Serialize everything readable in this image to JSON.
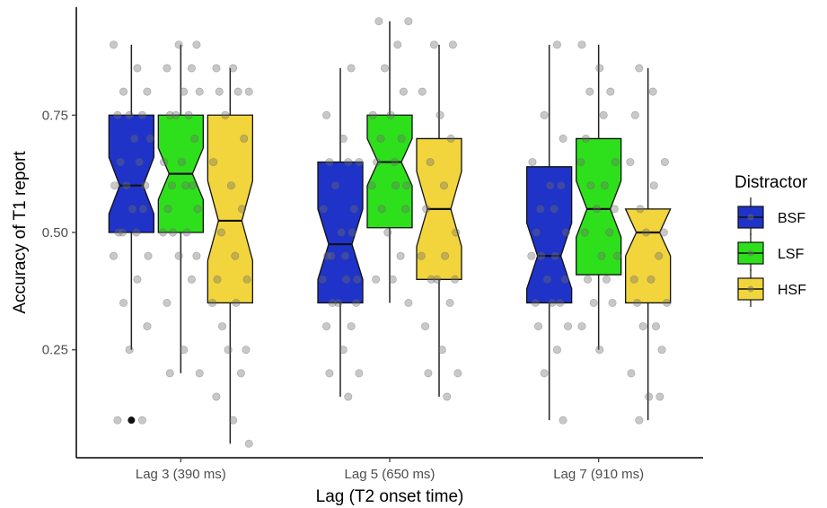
{
  "chart_data": {
    "type": "boxplot",
    "title": "",
    "xlabel": "Lag (T2 onset time)",
    "ylabel": "Accuracy of T1 report",
    "categories": [
      "Lag 3 (390 ms)",
      "Lag 5 (650 ms)",
      "Lag 7 (910 ms)"
    ],
    "yticks": [
      0.25,
      0.5,
      0.75
    ],
    "ytick_labels": [
      "0.25",
      "0.50",
      "0.75"
    ],
    "ylim": [
      0.02,
      0.98
    ],
    "legend": {
      "title": "Distractor",
      "position": "right"
    },
    "series": [
      {
        "name": "BSF",
        "color": "#1f33c8",
        "boxes": [
          {
            "min": 0.25,
            "q1": 0.5,
            "median": 0.6,
            "q3": 0.75,
            "max": 0.9,
            "notch_low": 0.54,
            "notch_high": 0.66,
            "outliers": [
              0.1
            ]
          },
          {
            "min": 0.15,
            "q1": 0.35,
            "median": 0.475,
            "q3": 0.65,
            "max": 0.85,
            "notch_low": 0.4,
            "notch_high": 0.55,
            "outliers": []
          },
          {
            "min": 0.1,
            "q1": 0.35,
            "median": 0.45,
            "q3": 0.64,
            "max": 0.9,
            "notch_low": 0.38,
            "notch_high": 0.52,
            "outliers": []
          }
        ],
        "points": [
          [
            0.9,
            0.85,
            0.8,
            0.8,
            0.75,
            0.75,
            0.75,
            0.7,
            0.7,
            0.65,
            0.65,
            0.6,
            0.6,
            0.6,
            0.55,
            0.55,
            0.5,
            0.5,
            0.5,
            0.45,
            0.45,
            0.4,
            0.35,
            0.3,
            0.25,
            0.1,
            0.1
          ],
          [
            0.85,
            0.75,
            0.7,
            0.65,
            0.65,
            0.65,
            0.6,
            0.55,
            0.55,
            0.5,
            0.5,
            0.45,
            0.45,
            0.45,
            0.4,
            0.4,
            0.4,
            0.35,
            0.35,
            0.35,
            0.3,
            0.3,
            0.25,
            0.2,
            0.2,
            0.15
          ],
          [
            0.9,
            0.75,
            0.7,
            0.65,
            0.6,
            0.6,
            0.55,
            0.55,
            0.5,
            0.5,
            0.45,
            0.45,
            0.45,
            0.4,
            0.4,
            0.35,
            0.35,
            0.35,
            0.3,
            0.3,
            0.25,
            0.2,
            0.1
          ]
        ]
      },
      {
        "name": "LSF",
        "color": "#2ee01b",
        "boxes": [
          {
            "min": 0.2,
            "q1": 0.5,
            "median": 0.625,
            "q3": 0.75,
            "max": 0.9,
            "notch_low": 0.57,
            "notch_high": 0.68,
            "outliers": []
          },
          {
            "min": 0.35,
            "q1": 0.51,
            "median": 0.65,
            "q3": 0.75,
            "max": 0.95,
            "notch_low": 0.6,
            "notch_high": 0.7,
            "outliers": []
          },
          {
            "min": 0.25,
            "q1": 0.41,
            "median": 0.55,
            "q3": 0.7,
            "max": 0.9,
            "notch_low": 0.49,
            "notch_high": 0.61,
            "outliers": []
          }
        ],
        "points": [
          [
            0.9,
            0.9,
            0.85,
            0.85,
            0.8,
            0.8,
            0.75,
            0.75,
            0.75,
            0.7,
            0.65,
            0.65,
            0.6,
            0.6,
            0.6,
            0.55,
            0.55,
            0.5,
            0.5,
            0.5,
            0.45,
            0.45,
            0.4,
            0.35,
            0.25,
            0.2,
            0.2
          ],
          [
            0.95,
            0.95,
            0.9,
            0.85,
            0.8,
            0.75,
            0.75,
            0.7,
            0.7,
            0.65,
            0.65,
            0.6,
            0.6,
            0.6,
            0.55,
            0.55,
            0.5,
            0.45,
            0.4,
            0.4,
            0.35
          ],
          [
            0.9,
            0.85,
            0.8,
            0.8,
            0.75,
            0.7,
            0.65,
            0.65,
            0.6,
            0.6,
            0.55,
            0.55,
            0.5,
            0.5,
            0.45,
            0.45,
            0.4,
            0.4,
            0.35,
            0.35,
            0.3,
            0.25
          ]
        ]
      },
      {
        "name": "HSF",
        "color": "#f2d53c",
        "boxes": [
          {
            "min": 0.05,
            "q1": 0.35,
            "median": 0.525,
            "q3": 0.75,
            "max": 0.85,
            "notch_low": 0.44,
            "notch_high": 0.61,
            "outliers": []
          },
          {
            "min": 0.15,
            "q1": 0.4,
            "median": 0.55,
            "q3": 0.7,
            "max": 0.9,
            "notch_low": 0.47,
            "notch_high": 0.63,
            "outliers": []
          },
          {
            "min": 0.1,
            "q1": 0.35,
            "median": 0.5,
            "q3": 0.55,
            "max": 0.85,
            "notch_low": 0.45,
            "notch_high": 0.55,
            "outliers": []
          }
        ],
        "points": [
          [
            0.85,
            0.85,
            0.8,
            0.8,
            0.8,
            0.75,
            0.7,
            0.65,
            0.6,
            0.55,
            0.5,
            0.45,
            0.4,
            0.4,
            0.35,
            0.35,
            0.3,
            0.25,
            0.25,
            0.2,
            0.15,
            0.1,
            0.05
          ],
          [
            0.9,
            0.9,
            0.8,
            0.75,
            0.7,
            0.65,
            0.6,
            0.55,
            0.5,
            0.45,
            0.45,
            0.4,
            0.4,
            0.4,
            0.35,
            0.3,
            0.25,
            0.2,
            0.2,
            0.15
          ],
          [
            0.85,
            0.8,
            0.75,
            0.65,
            0.65,
            0.6,
            0.55,
            0.5,
            0.5,
            0.45,
            0.4,
            0.4,
            0.35,
            0.35,
            0.3,
            0.3,
            0.25,
            0.2,
            0.15,
            0.15,
            0.1
          ]
        ]
      }
    ]
  }
}
